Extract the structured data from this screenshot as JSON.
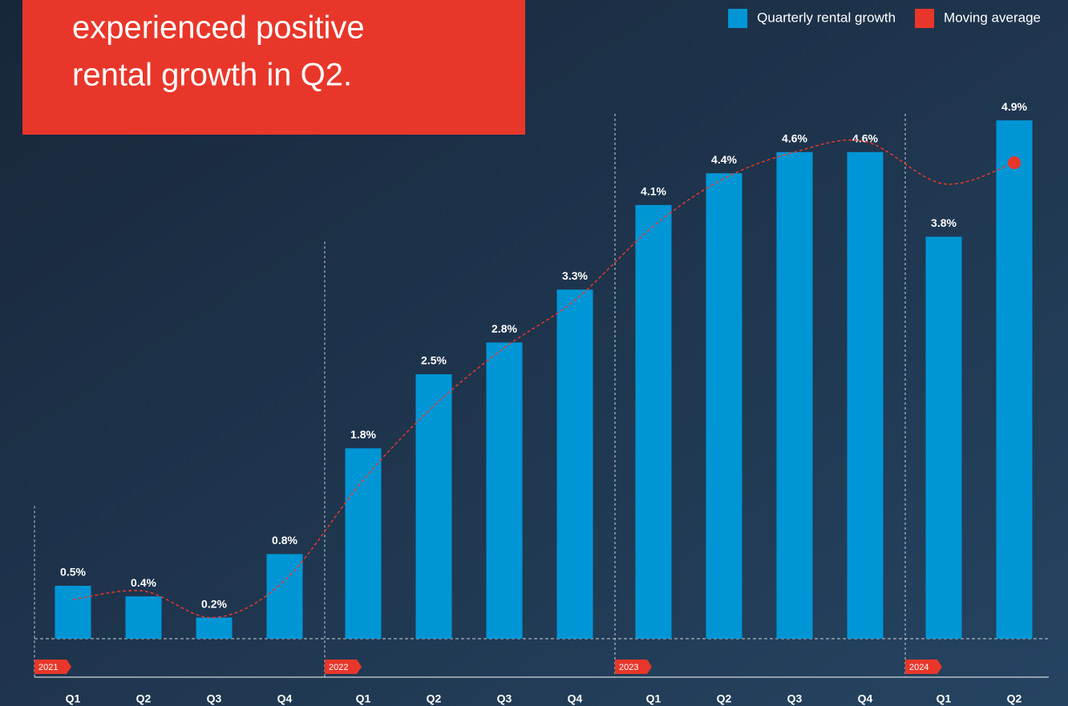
{
  "chart_data": {
    "type": "bar",
    "title_lines": [
      "experienced positive",
      "rental growth in Q2."
    ],
    "years": [
      "2021",
      "2022",
      "2023",
      "2024"
    ],
    "categories": [
      "Q1",
      "Q2",
      "Q3",
      "Q4",
      "Q1",
      "Q2",
      "Q3",
      "Q4",
      "Q1",
      "Q2",
      "Q3",
      "Q4",
      "Q1",
      "Q2"
    ],
    "series": [
      {
        "name": "Quarterly rental growth",
        "color": "#0096d6",
        "type": "bar",
        "values": [
          0.5,
          0.4,
          0.2,
          0.8,
          1.8,
          2.5,
          2.8,
          3.3,
          4.1,
          4.4,
          4.6,
          4.6,
          3.8,
          4.9
        ],
        "value_labels": [
          "0.5%",
          "0.4%",
          "0.2%",
          "0.8%",
          "1.8%",
          "2.5%",
          "2.8%",
          "3.3%",
          "4.1%",
          "4.4%",
          "4.6%",
          "4.6%",
          "3.8%",
          "4.9%"
        ]
      },
      {
        "name": "Moving average",
        "color": "#e8372a",
        "type": "line",
        "values": [
          0.37,
          0.45,
          0.2,
          0.55,
          1.5,
          2.2,
          2.75,
          3.2,
          3.9,
          4.35,
          4.6,
          4.7,
          4.3,
          4.5
        ]
      }
    ]
  }
}
